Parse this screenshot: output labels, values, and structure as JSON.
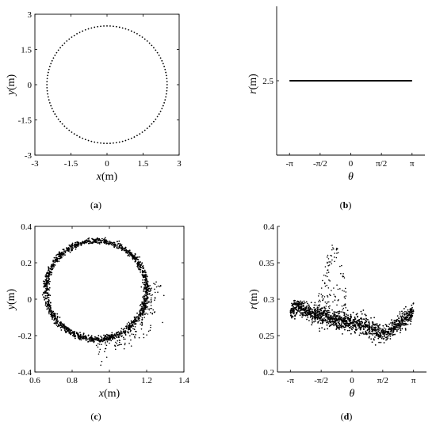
{
  "chart_data": [
    {
      "panel": "a",
      "type": "scatter",
      "caption": "a",
      "xlabel": {
        "var": "x",
        "unit": "(m)"
      },
      "ylabel": {
        "var": "y",
        "unit": "(m)"
      },
      "xlim": [
        -3,
        3
      ],
      "ylim": [
        -3,
        3
      ],
      "xticks": [
        -3,
        -1.5,
        0,
        1.5,
        3
      ],
      "xtick_labels": [
        "-3",
        "-1.5",
        "0",
        "1.5",
        "3"
      ],
      "yticks": [
        -3,
        -1.5,
        0,
        1.5,
        3
      ],
      "ytick_labels": [
        "-3",
        "-1.5",
        "0",
        "1.5",
        "3"
      ],
      "series": [
        {
          "shape": "circle",
          "center": [
            0,
            0
          ],
          "radius": 2.5,
          "num_points": 120,
          "style": "dotted"
        }
      ]
    },
    {
      "panel": "b",
      "type": "line",
      "caption": "b",
      "xlabel": {
        "var": "θ",
        "unit": ""
      },
      "ylabel": {
        "var": "r",
        "unit": "(m)"
      },
      "xlim": [
        -3.8,
        3.8
      ],
      "ylim": [
        0,
        5
      ],
      "xticks": [
        -3.14159,
        -1.5708,
        0,
        1.5708,
        3.14159
      ],
      "xtick_labels": [
        "-π",
        "-π/2",
        "0",
        "π/2",
        "π"
      ],
      "yticks": [
        2.5
      ],
      "ytick_labels": [
        "2.5"
      ],
      "series": [
        {
          "x": [
            -3.14159,
            3.14159
          ],
          "y": [
            2.5,
            2.5
          ]
        }
      ]
    },
    {
      "panel": "c",
      "type": "scatter",
      "caption": "c",
      "xlabel": {
        "var": "x",
        "unit": "(m)"
      },
      "ylabel": {
        "var": "y",
        "unit": "(m)"
      },
      "xlim": [
        0.6,
        1.4
      ],
      "ylim": [
        -0.4,
        0.4
      ],
      "xticks": [
        0.6,
        0.8,
        1.0,
        1.2,
        1.4
      ],
      "xtick_labels": [
        "0.6",
        "0.8",
        "1",
        "1.2",
        "1.4"
      ],
      "yticks": [
        -0.4,
        -0.2,
        0,
        0.2,
        0.4
      ],
      "ytick_labels": [
        "-0.4",
        "-0.2",
        "0",
        "0.2",
        "0.4"
      ],
      "series": [
        {
          "shape": "noisy-ring",
          "center": [
            0.93,
            0.05
          ],
          "radius_x": 0.27,
          "radius_y": 0.27,
          "num_points": 1400,
          "scatter_cluster": {
            "x_range": [
              0.9,
              1.3
            ],
            "y_range": [
              -0.3,
              -0.05
            ],
            "num_points": 140
          }
        }
      ]
    },
    {
      "panel": "d",
      "type": "scatter",
      "caption": "d",
      "xlabel": {
        "var": "θ",
        "unit": ""
      },
      "ylabel": {
        "var": "r",
        "unit": "(m)"
      },
      "xlim": [
        -3.8,
        3.8
      ],
      "ylim": [
        0.2,
        0.4
      ],
      "xticks": [
        -3.14159,
        -1.5708,
        0,
        1.5708,
        3.14159
      ],
      "xtick_labels": [
        "-π",
        "-π/2",
        "0",
        "π/2",
        "π"
      ],
      "yticks": [
        0.2,
        0.25,
        0.3,
        0.35,
        0.4
      ],
      "ytick_labels": [
        "0.2",
        "0.25",
        "0.3",
        "0.35",
        "0.4"
      ],
      "series": [
        {
          "band": [
            [
              -3.14,
              0.285
            ],
            [
              -2.7,
              0.29
            ],
            [
              -2.2,
              0.282
            ],
            [
              -1.6,
              0.276
            ],
            [
              -1.0,
              0.272
            ],
            [
              -0.4,
              0.27
            ],
            [
              0.2,
              0.266
            ],
            [
              0.8,
              0.262
            ],
            [
              1.2,
              0.257
            ],
            [
              1.57,
              0.252
            ],
            [
              1.9,
              0.256
            ],
            [
              2.4,
              0.266
            ],
            [
              2.8,
              0.275
            ],
            [
              3.14,
              0.282
            ]
          ],
          "num_points": 1300,
          "outliers": {
            "theta_range": [
              -1.9,
              -0.3
            ],
            "r_range": [
              0.28,
              0.4
            ],
            "num_points": 130
          }
        }
      ]
    }
  ]
}
